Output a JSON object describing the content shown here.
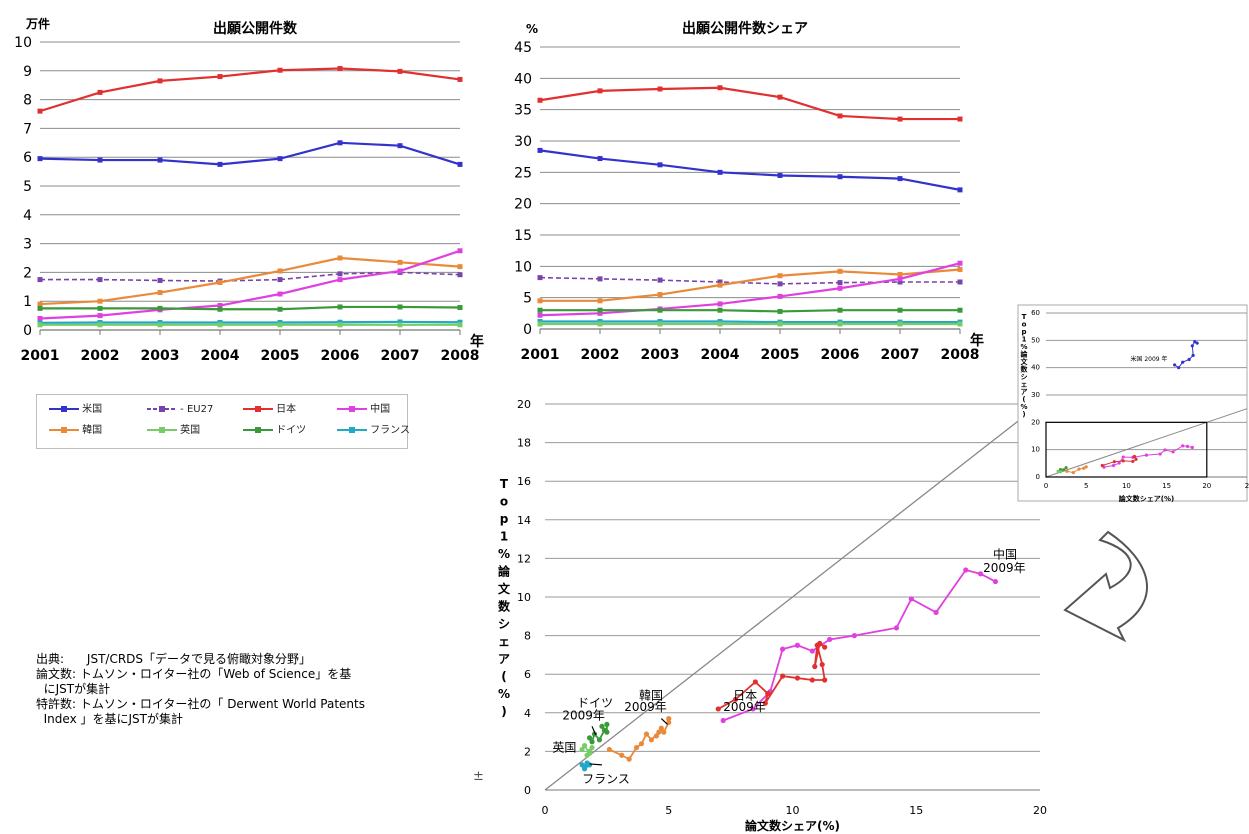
{
  "chart_data": [
    {
      "id": "patents",
      "type": "line",
      "title": "出願公開件数",
      "y_unit": "万件",
      "x_unit": "年",
      "x": [
        2001,
        2002,
        2003,
        2004,
        2005,
        2006,
        2007,
        2008
      ],
      "ylim": [
        0,
        10
      ],
      "yticks": [
        0,
        1,
        2,
        3,
        4,
        5,
        6,
        7,
        8,
        9,
        10
      ],
      "grid": true,
      "series": [
        {
          "name": "日本",
          "color": "#e03030",
          "values": [
            7.6,
            8.25,
            8.65,
            8.8,
            9.02,
            9.08,
            8.98,
            8.7
          ]
        },
        {
          "name": "米国",
          "color": "#3333cc",
          "values": [
            5.95,
            5.9,
            5.9,
            5.75,
            5.95,
            6.5,
            6.4,
            5.75
          ]
        },
        {
          "name": "EU27",
          "color": "#7744aa",
          "dashed": true,
          "values": [
            1.75,
            1.75,
            1.72,
            1.7,
            1.75,
            1.95,
            2.0,
            1.92
          ]
        },
        {
          "name": "韓国",
          "color": "#e98a3a",
          "values": [
            0.9,
            1.0,
            1.3,
            1.65,
            2.05,
            2.5,
            2.35,
            2.2
          ]
        },
        {
          "name": "中国",
          "color": "#e040e0",
          "values": [
            0.4,
            0.5,
            0.7,
            0.85,
            1.25,
            1.75,
            2.05,
            2.75
          ]
        },
        {
          "name": "ドイツ",
          "color": "#3a9a3a",
          "values": [
            0.75,
            0.75,
            0.75,
            0.72,
            0.72,
            0.8,
            0.8,
            0.78
          ]
        },
        {
          "name": "フランス",
          "color": "#22a7c7",
          "values": [
            0.25,
            0.26,
            0.26,
            0.26,
            0.26,
            0.27,
            0.28,
            0.27
          ]
        },
        {
          "name": "英国",
          "color": "#77cc66",
          "values": [
            0.18,
            0.18,
            0.18,
            0.18,
            0.18,
            0.18,
            0.18,
            0.18
          ]
        }
      ]
    },
    {
      "id": "share",
      "type": "line",
      "title": "出願公開件数シェア",
      "y_unit": "%",
      "x_unit": "年",
      "x": [
        2001,
        2002,
        2003,
        2004,
        2005,
        2006,
        2007,
        2008
      ],
      "ylim": [
        0,
        45
      ],
      "yticks": [
        0,
        5,
        10,
        15,
        20,
        25,
        30,
        35,
        40,
        45
      ],
      "grid": true,
      "series": [
        {
          "name": "日本",
          "color": "#e03030",
          "values": [
            36.5,
            38.0,
            38.3,
            38.5,
            37.0,
            34.0,
            33.5,
            33.5
          ]
        },
        {
          "name": "米国",
          "color": "#3333cc",
          "values": [
            28.5,
            27.2,
            26.2,
            25.0,
            24.5,
            24.3,
            24.0,
            22.2
          ]
        },
        {
          "name": "EU27",
          "color": "#7744aa",
          "dashed": true,
          "values": [
            8.2,
            8.0,
            7.8,
            7.5,
            7.2,
            7.4,
            7.5,
            7.5
          ]
        },
        {
          "name": "韓国",
          "color": "#e98a3a",
          "values": [
            4.5,
            4.5,
            5.5,
            7.0,
            8.5,
            9.2,
            8.7,
            9.5
          ]
        },
        {
          "name": "中国",
          "color": "#e040e0",
          "values": [
            2.2,
            2.5,
            3.2,
            4.0,
            5.2,
            6.5,
            8.0,
            10.5
          ]
        },
        {
          "name": "ドイツ",
          "color": "#3a9a3a",
          "values": [
            3.0,
            3.0,
            3.0,
            3.0,
            2.8,
            3.0,
            3.0,
            3.0
          ]
        },
        {
          "name": "フランス",
          "color": "#22a7c7",
          "values": [
            1.2,
            1.2,
            1.2,
            1.2,
            1.1,
            1.1,
            1.1,
            1.1
          ]
        },
        {
          "name": "英国",
          "color": "#77cc66",
          "values": [
            0.8,
            0.8,
            0.8,
            0.8,
            0.8,
            0.8,
            0.8,
            0.8
          ]
        }
      ]
    },
    {
      "id": "papers",
      "type": "scatter",
      "xlabel": "論文数シェア(%)",
      "ylabel": "Top1%論文数シェア(%)",
      "xlim": [
        0,
        20
      ],
      "ylim": [
        0,
        20
      ],
      "xticks": [
        0,
        5,
        10,
        15,
        20
      ],
      "yticks": [
        0,
        2,
        4,
        6,
        8,
        10,
        12,
        14,
        16,
        18,
        20
      ],
      "grid": true,
      "diagonal": true,
      "stray_label": "±",
      "annotations": [
        {
          "text": "中国",
          "x": 18.1,
          "y": 12.0,
          "color": "#000"
        },
        {
          "text": "2009年",
          "x": 17.7,
          "y": 11.3,
          "color": "#000"
        },
        {
          "text": "日本",
          "x": 7.6,
          "y": 4.7,
          "color": "#000"
        },
        {
          "text": "2009年",
          "x": 7.2,
          "y": 4.1,
          "color": "#000"
        },
        {
          "text": "韓国",
          "x": 3.8,
          "y": 4.7,
          "color": "#000"
        },
        {
          "text": "2009年",
          "x": 3.2,
          "y": 4.1,
          "color": "#000"
        },
        {
          "text": "ドイツ",
          "x": 1.3,
          "y": 4.3,
          "color": "#000"
        },
        {
          "text": "2009年",
          "x": 0.7,
          "y": 3.65,
          "color": "#000"
        },
        {
          "text": "英国",
          "x": 0.3,
          "y": 2.0,
          "color": "#000"
        },
        {
          "text": "フランス",
          "x": 1.5,
          "y": 0.35,
          "color": "#000"
        }
      ],
      "series": [
        {
          "name": "中国",
          "color": "#e040e0",
          "points": [
            [
              7.2,
              3.6
            ],
            [
              8.4,
              4.2
            ],
            [
              9.1,
              5.1
            ],
            [
              9.6,
              7.3
            ],
            [
              10.2,
              7.5
            ],
            [
              10.8,
              7.2
            ],
            [
              11.5,
              7.8
            ],
            [
              12.5,
              8.0
            ],
            [
              14.2,
              8.4
            ],
            [
              14.8,
              9.9
            ],
            [
              15.8,
              9.2
            ],
            [
              17.0,
              11.4
            ],
            [
              17.6,
              11.2
            ],
            [
              18.2,
              10.8
            ]
          ]
        },
        {
          "name": "日本",
          "color": "#e03030",
          "points": [
            [
              7.0,
              4.2
            ],
            [
              7.7,
              4.7
            ],
            [
              8.5,
              5.6
            ],
            [
              9.0,
              5.0
            ],
            [
              8.9,
              4.5
            ],
            [
              9.6,
              5.9
            ],
            [
              10.2,
              5.8
            ],
            [
              10.8,
              5.7
            ],
            [
              11.3,
              5.7
            ],
            [
              11.2,
              6.5
            ],
            [
              11.0,
              7.5
            ],
            [
              10.9,
              6.4
            ],
            [
              11.1,
              7.6
            ],
            [
              11.3,
              7.4
            ]
          ]
        },
        {
          "name": "韓国",
          "color": "#e98a3a",
          "points": [
            [
              2.6,
              2.1
            ],
            [
              3.1,
              1.8
            ],
            [
              3.4,
              1.6
            ],
            [
              3.7,
              2.2
            ],
            [
              3.9,
              2.4
            ],
            [
              4.1,
              2.9
            ],
            [
              4.3,
              2.6
            ],
            [
              4.6,
              3.0
            ],
            [
              4.5,
              2.8
            ],
            [
              4.7,
              3.2
            ],
            [
              4.8,
              3.0
            ],
            [
              5.0,
              3.5
            ],
            [
              5.0,
              3.7
            ]
          ]
        },
        {
          "name": "ドイツ",
          "color": "#3a9a3a",
          "points": [
            [
              1.8,
              2.7
            ],
            [
              1.9,
              2.5
            ],
            [
              2.0,
              2.9
            ],
            [
              2.2,
              2.6
            ],
            [
              2.4,
              3.1
            ],
            [
              2.3,
              3.3
            ],
            [
              2.5,
              3.0
            ],
            [
              2.5,
              3.4
            ]
          ]
        },
        {
          "name": "英国",
          "color": "#77cc66",
          "points": [
            [
              1.5,
              2.1
            ],
            [
              1.6,
              2.3
            ],
            [
              1.8,
              1.9
            ],
            [
              1.9,
              2.2
            ],
            [
              1.7,
              1.8
            ],
            [
              1.8,
              2.0
            ]
          ]
        },
        {
          "name": "フランス",
          "color": "#22a7c7",
          "points": [
            [
              1.5,
              1.3
            ],
            [
              1.6,
              1.2
            ],
            [
              1.7,
              1.4
            ],
            [
              1.6,
              1.1
            ],
            [
              1.8,
              1.3
            ]
          ]
        }
      ]
    },
    {
      "id": "papers-inset",
      "type": "scatter",
      "xlabel": "論文数シェア(%)",
      "ylabel": "Top1%論文数シェア(%)",
      "xlim": [
        0,
        25
      ],
      "ylim": [
        0,
        60
      ],
      "xticks": [
        0,
        5,
        10,
        15,
        20,
        "2"
      ],
      "yticks": [
        0,
        10,
        20,
        30,
        40,
        50,
        60
      ],
      "grid": true,
      "diagonal": true,
      "annotations": [
        {
          "text": "米国 2009 年",
          "x": 10.5,
          "y": 42.5,
          "color": "#000"
        }
      ],
      "zoom_box": {
        "x0": 0,
        "x1": 20,
        "y0": 0,
        "y1": 20
      },
      "series": [
        {
          "name": "米国",
          "color": "#3333cc",
          "points": [
            [
              16.0,
              41.0
            ],
            [
              16.5,
              40.0
            ],
            [
              17.0,
              42.0
            ],
            [
              17.8,
              43.0
            ],
            [
              18.3,
              44.5
            ],
            [
              18.2,
              48.0
            ],
            [
              18.5,
              49.5
            ],
            [
              18.8,
              49.0
            ]
          ]
        },
        {
          "name": "中国",
          "color": "#e040e0",
          "points": [
            [
              7.2,
              3.6
            ],
            [
              8.4,
              4.2
            ],
            [
              9.1,
              5.1
            ],
            [
              9.6,
              7.3
            ],
            [
              10.8,
              7.2
            ],
            [
              12.5,
              8.0
            ],
            [
              14.2,
              8.4
            ],
            [
              14.8,
              9.9
            ],
            [
              15.8,
              9.2
            ],
            [
              17.0,
              11.4
            ],
            [
              17.6,
              11.2
            ],
            [
              18.2,
              10.8
            ]
          ]
        },
        {
          "name": "日本",
          "color": "#e03030",
          "points": [
            [
              7.0,
              4.2
            ],
            [
              8.5,
              5.6
            ],
            [
              9.6,
              5.9
            ],
            [
              10.8,
              5.7
            ],
            [
              11.2,
              6.5
            ],
            [
              11.0,
              7.5
            ]
          ]
        },
        {
          "name": "韓国",
          "color": "#e98a3a",
          "points": [
            [
              2.6,
              2.1
            ],
            [
              3.4,
              1.6
            ],
            [
              4.1,
              2.9
            ],
            [
              4.7,
              3.2
            ],
            [
              5.0,
              3.7
            ]
          ]
        },
        {
          "name": "ドイツ",
          "color": "#3a9a3a",
          "points": [
            [
              1.8,
              2.7
            ],
            [
              2.2,
              2.6
            ],
            [
              2.5,
              3.4
            ]
          ]
        },
        {
          "name": "英国",
          "color": "#77cc66",
          "points": [
            [
              1.5,
              2.1
            ],
            [
              1.8,
              1.9
            ]
          ]
        }
      ]
    }
  ],
  "legend": {
    "items": [
      {
        "name": "米国",
        "color": "#3333cc"
      },
      {
        "name": "EU27",
        "color": "#7744aa",
        "dashed": true
      },
      {
        "name": "日本",
        "color": "#e03030"
      },
      {
        "name": "中国",
        "color": "#e040e0"
      },
      {
        "name": "韓国",
        "color": "#e98a3a"
      },
      {
        "name": "英国",
        "color": "#77cc66"
      },
      {
        "name": "ドイツ",
        "color": "#3a9a3a"
      },
      {
        "name": "フランス",
        "color": "#22a7c7"
      }
    ]
  },
  "source": {
    "line1": "出典:      JST/CRDS「データで見る俯瞰対象分野」",
    "line2": "論文数: トムソン・ロイター社の「Web of Science」を基",
    "line3": "  にJSTが集計",
    "line4": "特許数: トムソン・ロイター社の「 Derwent World Patents",
    "line5": "  Index 」を基にJSTが集計"
  }
}
